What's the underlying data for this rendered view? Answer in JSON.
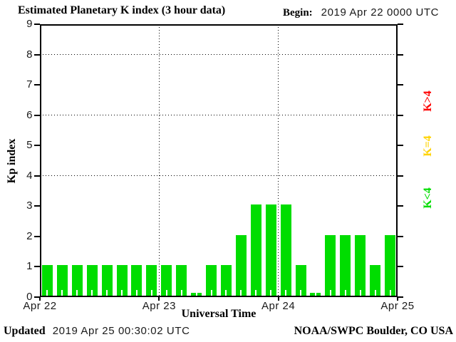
{
  "header": {
    "title": "Estimated Planetary K index (3 hour data)",
    "begin_label": "Begin:",
    "begin_value": "2019 Apr 22 0000 UTC"
  },
  "footer": {
    "updated_label": "Updated",
    "updated_value": "2019 Apr 25 00:30:02 UTC",
    "source": "NOAA/SWPC Boulder, CO USA"
  },
  "chart_data": {
    "type": "bar",
    "title": "Estimated Planetary K index (3 hour data)",
    "xlabel": "Universal Time",
    "ylabel": "Kp index",
    "ylim": [
      0,
      9
    ],
    "yticks": [
      0,
      1,
      2,
      3,
      4,
      5,
      6,
      7,
      8,
      9
    ],
    "grid_y_dotted": [
      4,
      6,
      8
    ],
    "grid": "dotted horizontal at 4,6,8 and dotted vertical at day boundaries",
    "bar_interval_hours": 3,
    "bar_color": "#00dd00",
    "bar_color_rule": "green K<4, yellow K=4, red K>4",
    "x_day_ticks": [
      "Apr 22",
      "Apr 23",
      "Apr 24",
      "Apr 25"
    ],
    "categories": [
      "Apr 22 00",
      "Apr 22 03",
      "Apr 22 06",
      "Apr 22 09",
      "Apr 22 12",
      "Apr 22 15",
      "Apr 22 18",
      "Apr 22 21",
      "Apr 23 00",
      "Apr 23 03",
      "Apr 23 06",
      "Apr 23 09",
      "Apr 23 12",
      "Apr 23 15",
      "Apr 23 18",
      "Apr 23 21",
      "Apr 24 00",
      "Apr 24 03",
      "Apr 24 06",
      "Apr 24 09",
      "Apr 24 12",
      "Apr 24 15",
      "Apr 24 18",
      "Apr 24 21"
    ],
    "values": [
      1,
      1,
      1,
      1,
      1,
      1,
      1,
      1,
      1,
      1,
      0,
      1,
      1,
      2,
      3,
      3,
      3,
      1,
      0,
      2,
      2,
      2,
      1,
      2
    ],
    "series": [
      {
        "name": "Apr 22",
        "values": [
          1,
          1,
          1,
          1,
          1,
          1,
          1,
          1
        ]
      },
      {
        "name": "Apr 23",
        "values": [
          1,
          1,
          0,
          1,
          1,
          2,
          3,
          3
        ]
      },
      {
        "name": "Apr 24",
        "values": [
          3,
          1,
          0,
          2,
          2,
          2,
          1,
          2
        ]
      }
    ],
    "legend": [
      {
        "label": "K>4",
        "color": "#ff0000"
      },
      {
        "label": "K=4",
        "color": "#ffd300"
      },
      {
        "label": "K<4",
        "color": "#00dd00"
      }
    ],
    "legend_position": "right side, rotated 90"
  }
}
